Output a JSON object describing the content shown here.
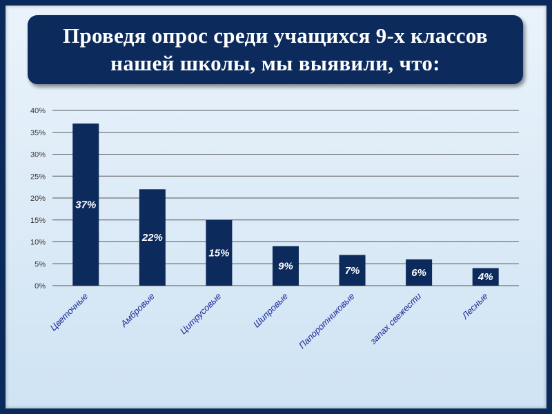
{
  "title": "Проведя опрос среди учащихся 9-х классов нашей школы, мы выявили, что:",
  "colors": {
    "bar": "#0c2a5b",
    "frame": "#0b2a5c",
    "category_text": "#1a2a99"
  },
  "chart_data": {
    "type": "bar",
    "categories": [
      "Цветочные",
      "Амбровые",
      "Цитрусовые",
      "Шипровые",
      "Папоротниковые",
      "запах свежести",
      "Лесные"
    ],
    "values": [
      37,
      22,
      15,
      9,
      7,
      6,
      4
    ],
    "data_labels": [
      "37%",
      "22%",
      "15%",
      "9%",
      "7%",
      "6%",
      "4%"
    ],
    "yticks": [
      "0%",
      "5%",
      "10%",
      "15%",
      "20%",
      "25%",
      "30%",
      "35%",
      "40%"
    ],
    "ylim": [
      0,
      40
    ],
    "grid": true,
    "legend": "none"
  }
}
